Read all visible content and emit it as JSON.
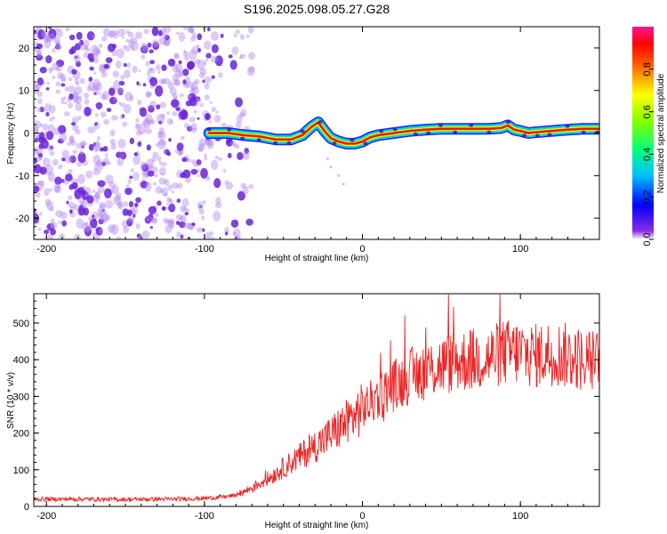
{
  "title": "S196.2025.098.05.27.G28",
  "colors": {
    "snr_line": "#ee2222",
    "noise_dots": "#7f2fe0",
    "ridge_core": "#e81a1a",
    "ridge_edge": "#1a3cff"
  },
  "chart_data": [
    {
      "type": "heatmap",
      "title": "S196.2025.098.05.27.G28",
      "xlabel": "Height of straight line (km)",
      "ylabel": "Frequency (Hz)",
      "xlim": [
        -208,
        150
      ],
      "ylim": [
        -25,
        25
      ],
      "xticks": [
        -200,
        -100,
        0,
        100
      ],
      "yticks": [
        -20,
        -10,
        0,
        10,
        20
      ],
      "noise_region_x": [
        -208,
        -80
      ],
      "ridge": {
        "x": [
          -97,
          -85,
          -75,
          -65,
          -55,
          -45,
          -38,
          -32,
          -28,
          -24,
          -20,
          -15,
          -10,
          -5,
          0,
          5,
          10,
          20,
          30,
          40,
          50,
          60,
          70,
          80,
          88,
          92,
          96,
          100,
          105,
          110,
          120,
          130,
          140,
          150
        ],
        "y": [
          0,
          0,
          -0.5,
          -0.8,
          -1.5,
          -1.5,
          -0.5,
          1.5,
          2.5,
          0.5,
          -1.2,
          -2.0,
          -2.5,
          -2.5,
          -2.0,
          -1.0,
          -0.5,
          0,
          0.5,
          0.8,
          1.0,
          1.0,
          1.0,
          1.0,
          1.2,
          1.8,
          0.8,
          0.5,
          0,
          0.2,
          0.5,
          0.8,
          1.0,
          1.0
        ]
      },
      "colorbar": {
        "label": "Normalized spectral amplitude",
        "range": [
          0,
          1
        ],
        "ticks": [
          "0.0",
          "0.2",
          "0.4",
          "0.6",
          "0.8"
        ]
      }
    },
    {
      "type": "line",
      "xlabel": "Height of straight line (km)",
      "ylabel": "SNR (10 * v/v)",
      "xlim": [
        -208,
        150
      ],
      "ylim": [
        0,
        580
      ],
      "xticks": [
        -200,
        -100,
        0,
        100
      ],
      "yticks": [
        0,
        100,
        200,
        300,
        400,
        500
      ],
      "series": [
        {
          "name": "SNR",
          "x": [
            -208,
            -180,
            -150,
            -120,
            -100,
            -90,
            -80,
            -70,
            -60,
            -50,
            -40,
            -30,
            -20,
            -10,
            0,
            10,
            20,
            30,
            40,
            50,
            60,
            70,
            80,
            90,
            100,
            110,
            120,
            130,
            140,
            150
          ],
          "y": [
            20,
            20,
            19,
            20,
            22,
            25,
            30,
            50,
            75,
            105,
            135,
            165,
            195,
            230,
            265,
            300,
            330,
            355,
            370,
            385,
            395,
            400,
            405,
            420,
            420,
            410,
            420,
            410,
            400,
            395
          ]
        }
      ]
    }
  ]
}
